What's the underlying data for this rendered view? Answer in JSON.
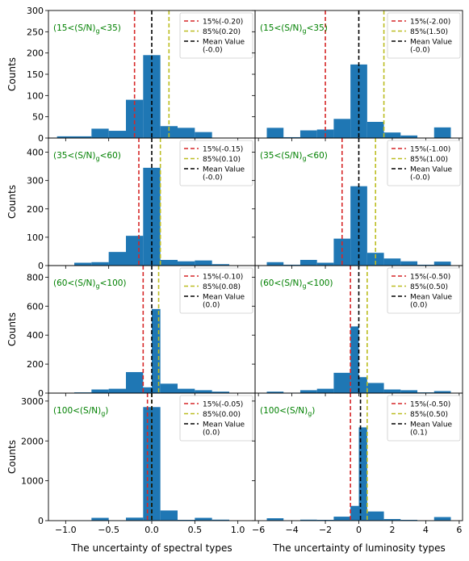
{
  "figure": {
    "ylabel": "Counts",
    "xlabel_left": "The uncertainty of spectral types",
    "xlabel_right": "The uncertainty of luminosity types"
  },
  "colors": {
    "bar": "#1f77b4",
    "p15": "#d62728",
    "p85": "#bcbd22",
    "mean": "#000000",
    "panel_label": "#008000"
  },
  "chart_data": [
    {
      "type": "bar",
      "row": 0,
      "col": 0,
      "label_pre": "(15<(S/N)",
      "label_sub": "g",
      "label_post": "<35)",
      "xlim": [
        -1.2,
        1.2
      ],
      "ylim": [
        0,
        300
      ],
      "yticks": [
        0,
        50,
        100,
        150,
        200,
        250,
        300
      ],
      "xticks": [
        -1.0,
        -0.5,
        0.0,
        0.5,
        1.0
      ],
      "xtick_labels": [
        "−1.0",
        "−0.5",
        "0.0",
        "0.5",
        "1.0"
      ],
      "show_xticklabels": false,
      "bin_edges": [
        -1.1,
        -0.9,
        -0.7,
        -0.5,
        -0.3,
        -0.1,
        0.1,
        0.3,
        0.5,
        0.7,
        0.9,
        1.1
      ],
      "counts": [
        4,
        4,
        22,
        17,
        90,
        195,
        28,
        24,
        14,
        0,
        0
      ],
      "p15": -0.2,
      "p85": 0.2,
      "mean": 0.0,
      "legend": [
        "15%(-0.20)",
        "85%(0.20)",
        "Mean Value",
        "(-0.0)"
      ]
    },
    {
      "type": "bar",
      "row": 0,
      "col": 1,
      "label_pre": "(15<(S/N)",
      "label_sub": "g",
      "label_post": "<35)",
      "xlim": [
        -6.2,
        6.2
      ],
      "ylim": [
        0,
        300
      ],
      "yticks": [
        0,
        50,
        100,
        150,
        200,
        250,
        300
      ],
      "xticks": [
        -6,
        -4,
        -2,
        0,
        2,
        4,
        6
      ],
      "xtick_labels": [
        "−6",
        "−4",
        "−2",
        "0",
        "2",
        "4",
        "6"
      ],
      "show_xticklabels": false,
      "bin_edges": [
        -5.5,
        -4.5,
        -3.5,
        -2.5,
        -1.5,
        -0.5,
        0.5,
        1.5,
        2.5,
        3.5,
        4.5,
        5.5
      ],
      "counts": [
        24,
        2,
        18,
        20,
        45,
        173,
        38,
        13,
        6,
        0,
        25
      ],
      "p15": -2.0,
      "p85": 1.5,
      "mean": 0.0,
      "legend": [
        "15%(-2.00)",
        "85%(1.50)",
        "Mean Value",
        "(-0.0)"
      ]
    },
    {
      "type": "bar",
      "row": 1,
      "col": 0,
      "label_pre": "(35<(S/N)",
      "label_sub": "g",
      "label_post": "<60)",
      "xlim": [
        -1.2,
        1.2
      ],
      "ylim": [
        0,
        450
      ],
      "yticks": [
        0,
        100,
        200,
        300,
        400
      ],
      "xticks": [
        -1.0,
        -0.5,
        0.0,
        0.5,
        1.0
      ],
      "xtick_labels": [
        "−1.0",
        "−0.5",
        "0.0",
        "0.5",
        "1.0"
      ],
      "show_xticklabels": false,
      "bin_edges": [
        -0.9,
        -0.7,
        -0.5,
        -0.3,
        -0.1,
        0.1,
        0.3,
        0.5,
        0.7,
        0.9
      ],
      "counts": [
        10,
        12,
        48,
        105,
        345,
        20,
        15,
        18,
        5
      ],
      "p15": -0.15,
      "p85": 0.1,
      "mean": 0.0,
      "legend": [
        "15%(-0.15)",
        "85%(0.10)",
        "Mean Value",
        "(-0.0)"
      ]
    },
    {
      "type": "bar",
      "row": 1,
      "col": 1,
      "label_pre": "(35<(S/N)",
      "label_sub": "g",
      "label_post": "<60)",
      "xlim": [
        -6.2,
        6.2
      ],
      "ylim": [
        0,
        450
      ],
      "yticks": [
        0,
        100,
        200,
        300,
        400
      ],
      "xticks": [
        -6,
        -4,
        -2,
        0,
        2,
        4,
        6
      ],
      "xtick_labels": [
        "−6",
        "−4",
        "−2",
        "0",
        "2",
        "4",
        "6"
      ],
      "show_xticklabels": false,
      "bin_edges": [
        -5.5,
        -4.5,
        -3.5,
        -2.5,
        -1.5,
        -0.5,
        0.5,
        1.5,
        2.5,
        3.5,
        4.5,
        5.5
      ],
      "counts": [
        12,
        3,
        20,
        10,
        95,
        280,
        45,
        25,
        15,
        3,
        14
      ],
      "p15": -1.0,
      "p85": 1.0,
      "mean": 0.0,
      "legend": [
        "15%(-1.00)",
        "85%(1.00)",
        "Mean Value",
        "(-0.0)"
      ]
    },
    {
      "type": "bar",
      "row": 2,
      "col": 0,
      "label_pre": "(60<(S/N)",
      "label_sub": "g",
      "label_post": "<100)",
      "xlim": [
        -1.2,
        1.2
      ],
      "ylim": [
        0,
        880
      ],
      "yticks": [
        0,
        200,
        400,
        600,
        800
      ],
      "xticks": [
        -1.0,
        -0.5,
        0.0,
        0.5,
        1.0
      ],
      "xtick_labels": [
        "−1.0",
        "−0.5",
        "0.0",
        "0.5",
        "1.0"
      ],
      "show_xticklabels": false,
      "bin_edges": [
        -0.9,
        -0.7,
        -0.5,
        -0.3,
        -0.1,
        0.0,
        0.1,
        0.3,
        0.5,
        0.7,
        0.9
      ],
      "counts": [
        5,
        25,
        30,
        145,
        40,
        580,
        65,
        30,
        20,
        10
      ],
      "p15": -0.1,
      "p85": 0.08,
      "mean": 0.0,
      "legend": [
        "15%(-0.10)",
        "85%(0.08)",
        "Mean Value",
        "(0.0)"
      ]
    },
    {
      "type": "bar",
      "row": 2,
      "col": 1,
      "label_pre": "(60<(S/N)",
      "label_sub": "g",
      "label_post": "<100)",
      "xlim": [
        -6.2,
        6.2
      ],
      "ylim": [
        0,
        880
      ],
      "yticks": [
        0,
        200,
        400,
        600,
        800
      ],
      "xticks": [
        -6,
        -4,
        -2,
        0,
        2,
        4,
        6
      ],
      "xtick_labels": [
        "−6",
        "−4",
        "−2",
        "0",
        "2",
        "4",
        "6"
      ],
      "show_xticklabels": false,
      "bin_edges": [
        -5.5,
        -4.5,
        -3.5,
        -2.5,
        -1.5,
        -0.5,
        0.0,
        0.5,
        1.5,
        2.5,
        3.5,
        4.5,
        5.5
      ],
      "counts": [
        10,
        3,
        20,
        30,
        140,
        460,
        110,
        70,
        25,
        20,
        5,
        14
      ],
      "p15": -0.5,
      "p85": 0.5,
      "mean": 0.0,
      "legend": [
        "15%(-0.50)",
        "85%(0.50)",
        "Mean Value",
        "(0.0)"
      ]
    },
    {
      "type": "bar",
      "row": 3,
      "col": 0,
      "label_pre": "(100<(S/N)",
      "label_sub": "g",
      "label_post": ")",
      "xlim": [
        -1.2,
        1.2
      ],
      "ylim": [
        0,
        3200
      ],
      "yticks": [
        0,
        1000,
        2000,
        3000
      ],
      "xticks": [
        -1.0,
        -0.5,
        0.0,
        0.5,
        1.0
      ],
      "xtick_labels": [
        "−1.0",
        "−0.5",
        "0.0",
        "0.5",
        "1.0"
      ],
      "show_xticklabels": true,
      "bin_edges": [
        -0.9,
        -0.7,
        -0.5,
        -0.3,
        -0.1,
        0.1,
        0.3,
        0.5,
        0.7,
        0.9
      ],
      "counts": [
        5,
        70,
        10,
        75,
        2850,
        255,
        20,
        70,
        25
      ],
      "p15": -0.05,
      "p85": 0.0,
      "mean": 0.0,
      "legend": [
        "15%(-0.05)",
        "85%(0.00)",
        "Mean Value",
        "(0.0)"
      ]
    },
    {
      "type": "bar",
      "row": 3,
      "col": 1,
      "label_pre": "(100<(S/N)",
      "label_sub": "g",
      "label_post": ")",
      "xlim": [
        -6.2,
        6.2
      ],
      "ylim": [
        0,
        3200
      ],
      "yticks": [
        0,
        1000,
        2000,
        3000
      ],
      "xticks": [
        -6,
        -4,
        -2,
        0,
        2,
        4,
        6
      ],
      "xtick_labels": [
        "−6",
        "−4",
        "−2",
        "0",
        "2",
        "4",
        "6"
      ],
      "show_xticklabels": true,
      "bin_edges": [
        -5.5,
        -4.5,
        -3.5,
        -2.5,
        -1.5,
        -0.5,
        0.0,
        0.5,
        1.5,
        2.5,
        3.5,
        4.5,
        5.5
      ],
      "counts": [
        60,
        5,
        25,
        20,
        100,
        370,
        2340,
        230,
        40,
        20,
        5,
        90
      ],
      "p15": -0.5,
      "p85": 0.5,
      "mean": 0.1,
      "legend": [
        "15%(-0.50)",
        "85%(0.50)",
        "Mean Value",
        "(0.1)"
      ]
    }
  ]
}
